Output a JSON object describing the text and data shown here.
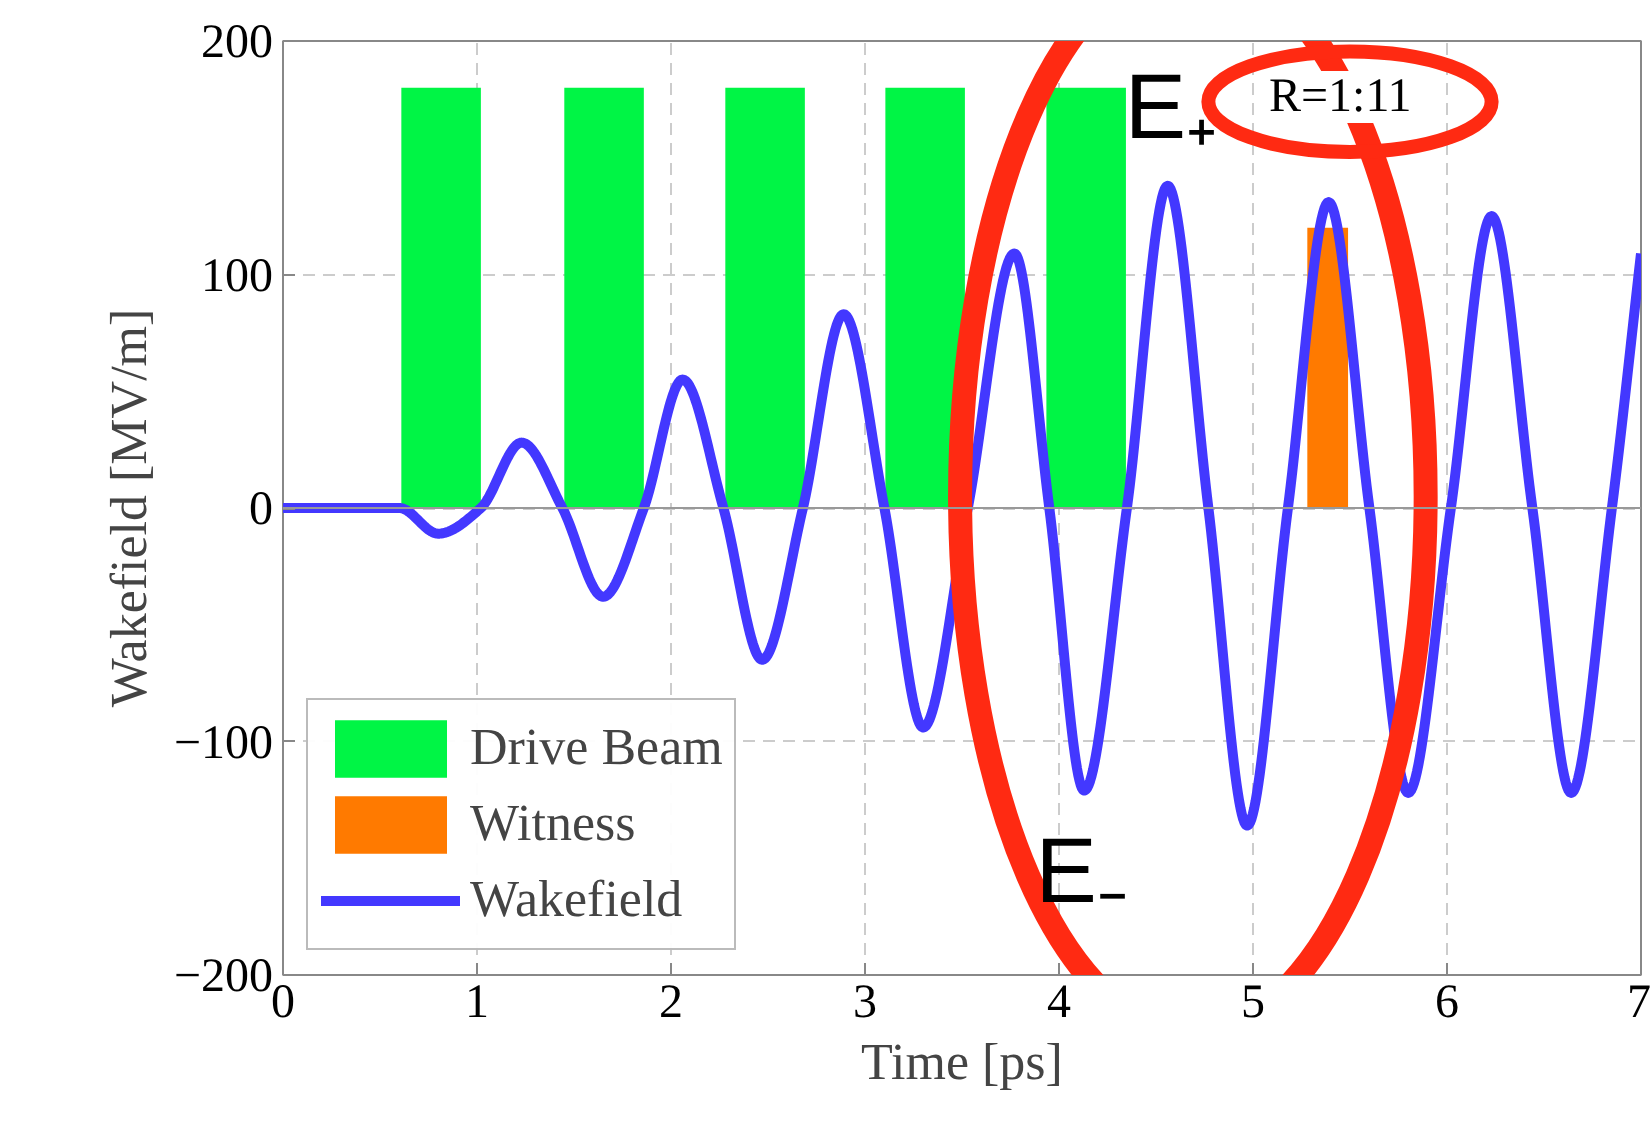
{
  "chart_data": {
    "type": "bar",
    "xlabel": "Time [ps]",
    "ylabel": "Wakefield [MV/m]",
    "xlim": [
      0,
      7
    ],
    "ylim": [
      -200,
      200
    ],
    "xticks": [
      0,
      1,
      2,
      3,
      4,
      5,
      6,
      7
    ],
    "yticks": [
      -200,
      -100,
      0,
      100,
      200
    ],
    "grid": true,
    "legend": "bottom left",
    "series": [
      {
        "name": "Drive Beam",
        "color": "#00f545",
        "x": [
          0.815,
          1.655,
          2.485,
          3.31,
          4.14
        ],
        "values": [
          180,
          180,
          180,
          180,
          180
        ]
      },
      {
        "name": "Witness",
        "color": "#ff7a00",
        "x": [
          5.385
        ],
        "values": [
          120
        ]
      },
      {
        "name": "Wakefield",
        "type": "line",
        "color": "#4338ff",
        "line_style": "solid",
        "x": [
          0,
          0.6,
          0.8,
          1.02,
          1.23,
          1.44,
          1.65,
          1.86,
          2.06,
          2.27,
          2.47,
          2.68,
          2.89,
          3.1,
          3.3,
          3.53,
          3.77,
          3.95,
          4.13,
          4.35,
          4.56,
          4.77,
          4.97,
          5.18,
          5.39,
          5.6,
          5.8,
          6.02,
          6.23,
          6.44,
          6.64,
          6.85,
          7
        ],
        "values": [
          0,
          0,
          -11,
          0,
          28,
          0,
          -38,
          0,
          55,
          0,
          -65,
          0,
          83,
          0,
          -94,
          0,
          109,
          0,
          -121,
          0,
          138,
          0,
          -136,
          0,
          131,
          0,
          -122,
          0,
          125,
          0,
          -122,
          0,
          109
        ]
      }
    ],
    "annotations": [
      "E₊",
      "E₋",
      "R=1:11"
    ]
  }
}
